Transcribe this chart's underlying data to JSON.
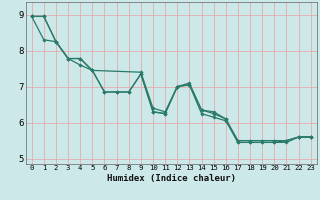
{
  "xlabel": "Humidex (Indice chaleur)",
  "bg_color": "#cce8e8",
  "grid_color": "#e8a0a0",
  "line_color": "#2a7a6a",
  "xlim": [
    -0.5,
    23.5
  ],
  "ylim": [
    4.85,
    9.35
  ],
  "yticks": [
    5,
    6,
    7,
    8,
    9
  ],
  "xticks": [
    0,
    1,
    2,
    3,
    4,
    5,
    6,
    7,
    8,
    9,
    10,
    11,
    12,
    13,
    14,
    15,
    16,
    17,
    18,
    19,
    20,
    21,
    22,
    23
  ],
  "series1": [
    [
      0,
      8.95
    ],
    [
      1,
      8.95
    ],
    [
      2,
      8.25
    ],
    [
      3,
      7.78
    ],
    [
      4,
      7.78
    ],
    [
      5,
      7.45
    ],
    [
      6,
      6.85
    ],
    [
      7,
      6.85
    ],
    [
      8,
      6.85
    ],
    [
      9,
      7.35
    ],
    [
      10,
      6.3
    ],
    [
      11,
      6.25
    ],
    [
      12,
      7.0
    ],
    [
      13,
      7.05
    ],
    [
      14,
      6.35
    ],
    [
      15,
      6.25
    ],
    [
      16,
      6.1
    ],
    [
      17,
      5.45
    ],
    [
      18,
      5.45
    ],
    [
      19,
      5.45
    ],
    [
      20,
      5.45
    ],
    [
      21,
      5.45
    ],
    [
      22,
      5.6
    ],
    [
      23,
      5.6
    ]
  ],
  "series2": [
    [
      0,
      8.95
    ],
    [
      1,
      8.3
    ],
    [
      3,
      7.78
    ],
    [
      4,
      7.78
    ],
    [
      9,
      7.35
    ],
    [
      10,
      6.3
    ],
    [
      11,
      6.25
    ],
    [
      12,
      7.0
    ],
    [
      13,
      7.05
    ],
    [
      14,
      6.25
    ],
    [
      15,
      6.15
    ],
    [
      17,
      5.45
    ],
    [
      18,
      5.45
    ],
    [
      19,
      5.45
    ],
    [
      20,
      5.45
    ],
    [
      22,
      5.6
    ],
    [
      23,
      5.6
    ]
  ],
  "series3": [
    [
      0,
      8.95
    ],
    [
      1,
      8.95
    ],
    [
      2,
      8.25
    ],
    [
      3,
      7.78
    ],
    [
      5,
      7.45
    ],
    [
      9,
      7.35
    ],
    [
      10,
      6.3
    ],
    [
      13,
      7.05
    ],
    [
      16,
      6.05
    ],
    [
      17,
      5.45
    ],
    [
      22,
      5.6
    ],
    [
      23,
      5.6
    ]
  ],
  "line1": [
    [
      0,
      8.95
    ],
    [
      1,
      8.95
    ],
    [
      2,
      8.25
    ],
    [
      3,
      7.78
    ],
    [
      4,
      7.78
    ],
    [
      5,
      7.45
    ],
    [
      6,
      6.85
    ],
    [
      7,
      6.85
    ],
    [
      8,
      6.85
    ],
    [
      9,
      7.35
    ],
    [
      10,
      6.3
    ],
    [
      11,
      6.25
    ],
    [
      12,
      7.0
    ],
    [
      13,
      7.05
    ],
    [
      14,
      6.35
    ],
    [
      15,
      6.25
    ],
    [
      16,
      6.1
    ],
    [
      17,
      5.45
    ],
    [
      18,
      5.45
    ],
    [
      19,
      5.45
    ],
    [
      20,
      5.45
    ],
    [
      21,
      5.45
    ],
    [
      22,
      5.6
    ],
    [
      23,
      5.6
    ]
  ],
  "line2": [
    [
      0,
      8.95
    ],
    [
      1,
      8.3
    ],
    [
      2,
      8.25
    ],
    [
      3,
      7.78
    ],
    [
      4,
      7.78
    ],
    [
      5,
      7.45
    ],
    [
      6,
      6.85
    ],
    [
      7,
      6.85
    ],
    [
      8,
      6.85
    ],
    [
      9,
      7.35
    ],
    [
      10,
      6.3
    ],
    [
      11,
      6.25
    ],
    [
      12,
      7.0
    ],
    [
      13,
      7.05
    ],
    [
      14,
      6.25
    ],
    [
      15,
      6.15
    ],
    [
      16,
      6.05
    ],
    [
      17,
      5.45
    ],
    [
      18,
      5.45
    ],
    [
      19,
      5.45
    ],
    [
      20,
      5.45
    ],
    [
      21,
      5.5
    ],
    [
      22,
      5.6
    ],
    [
      23,
      5.6
    ]
  ],
  "line3": [
    [
      0,
      8.95
    ],
    [
      1,
      8.95
    ],
    [
      2,
      8.25
    ],
    [
      3,
      7.78
    ],
    [
      4,
      7.6
    ],
    [
      5,
      7.45
    ],
    [
      9,
      7.4
    ],
    [
      10,
      6.4
    ],
    [
      11,
      6.3
    ],
    [
      12,
      7.0
    ],
    [
      13,
      7.1
    ],
    [
      14,
      6.35
    ],
    [
      15,
      6.3
    ],
    [
      16,
      6.1
    ],
    [
      17,
      5.5
    ],
    [
      18,
      5.5
    ],
    [
      19,
      5.5
    ],
    [
      20,
      5.5
    ],
    [
      21,
      5.5
    ],
    [
      22,
      5.6
    ],
    [
      23,
      5.6
    ]
  ]
}
